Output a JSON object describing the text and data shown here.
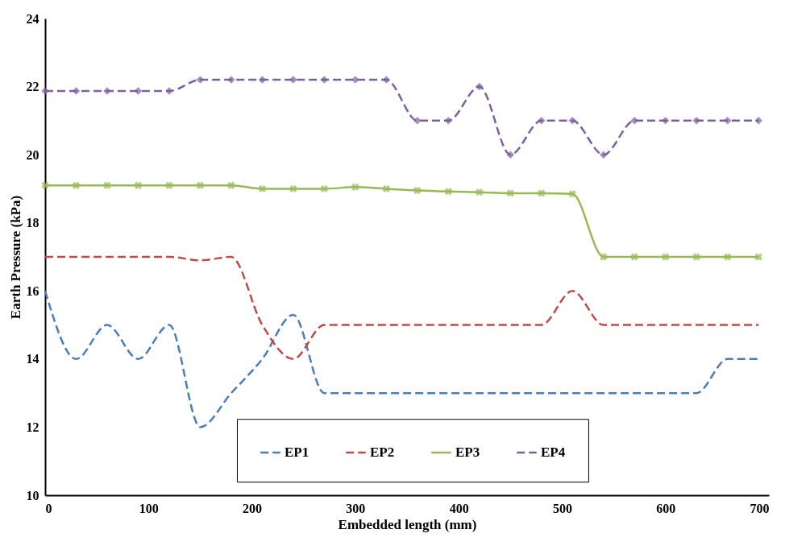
{
  "chart_data": {
    "type": "line",
    "xlabel": "Embedded length (mm)",
    "ylabel": "Earth Pressure (kPa)",
    "x": [
      0,
      30,
      60,
      90,
      120,
      150,
      180,
      210,
      240,
      270,
      300,
      330,
      360,
      390,
      420,
      450,
      480,
      510,
      540,
      570,
      600,
      630,
      660,
      690
    ],
    "series": [
      {
        "name": "EP1",
        "color": "#4a7ebb",
        "line_style": "dashed",
        "marker": "none",
        "values": [
          16,
          14,
          15,
          14,
          15,
          12,
          13,
          14,
          15.3,
          13,
          13,
          13,
          13,
          13,
          13,
          13,
          13,
          13,
          13,
          13,
          13,
          13,
          14,
          14
        ]
      },
      {
        "name": "EP2",
        "color": "#be4b48",
        "line_style": "dashed",
        "marker": "none",
        "values": [
          17,
          17,
          17,
          17,
          17,
          16.9,
          17,
          15,
          14,
          15,
          15,
          15,
          15,
          15,
          15,
          15,
          15,
          16,
          15,
          15,
          15,
          15,
          15,
          15
        ]
      },
      {
        "name": "EP3",
        "color": "#98b954",
        "line_style": "solid",
        "marker": "cross",
        "values": [
          19.1,
          19.1,
          19.1,
          19.1,
          19.1,
          19.1,
          19.1,
          19,
          19,
          19,
          19.05,
          19,
          18.95,
          18.92,
          18.9,
          18.87,
          18.87,
          18.85,
          17,
          17,
          17,
          17,
          17,
          17
        ]
      },
      {
        "name": "EP4",
        "color": "#7d60a0",
        "line_style": "dashed",
        "marker": "diamond",
        "values": [
          21.87,
          21.87,
          21.87,
          21.87,
          21.87,
          22.2,
          22.2,
          22.2,
          22.2,
          22.2,
          22.2,
          22.2,
          21,
          21,
          22,
          20,
          21,
          21,
          20,
          21,
          21,
          21,
          21,
          21
        ]
      }
    ],
    "xlim": [
      0,
      700
    ],
    "xticks": [
      0,
      100,
      200,
      300,
      400,
      500,
      600,
      700
    ],
    "ylim": [
      10,
      24
    ],
    "yticks": [
      10,
      12,
      14,
      16,
      18,
      20,
      22,
      24
    ],
    "legend": "bottom",
    "grid": false
  }
}
